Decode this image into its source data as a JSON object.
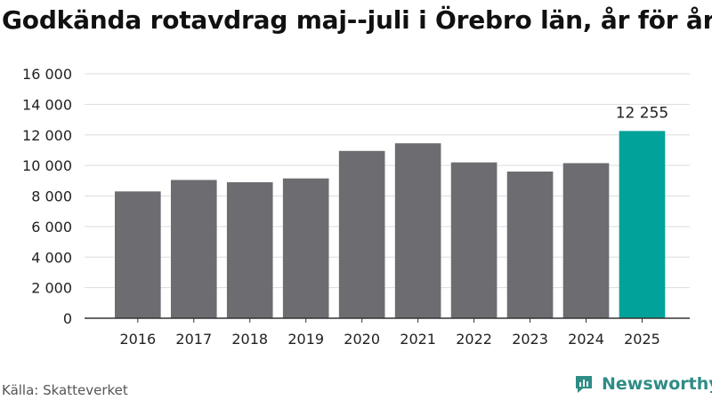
{
  "title": "Godkända rotavdrag maj--juli i Örebro län, år för år",
  "source": "Källa: Skatteverket",
  "brand": {
    "name": "Newsworthy",
    "icon": "newsworthy-logo-icon",
    "color": "#2f8c86"
  },
  "chart_data": {
    "type": "bar",
    "categories": [
      "2016",
      "2017",
      "2018",
      "2019",
      "2020",
      "2021",
      "2022",
      "2023",
      "2024",
      "2025"
    ],
    "values": [
      8300,
      9050,
      8900,
      9150,
      10950,
      11450,
      10200,
      9600,
      10150,
      12255
    ],
    "highlight_index": 9,
    "highlight_label": "12 255",
    "ylim": [
      0,
      16000
    ],
    "yticks": [
      0,
      2000,
      4000,
      6000,
      8000,
      10000,
      12000,
      14000,
      16000
    ],
    "ytick_labels": [
      "0",
      "2 000",
      "4 000",
      "6 000",
      "8 000",
      "10 000",
      "12 000",
      "14 000",
      "16 000"
    ],
    "grid": true,
    "colors": {
      "bar": "#6d6c70",
      "highlight": "#00a29a",
      "grid": "#dddddd",
      "axis": "#333333"
    }
  }
}
